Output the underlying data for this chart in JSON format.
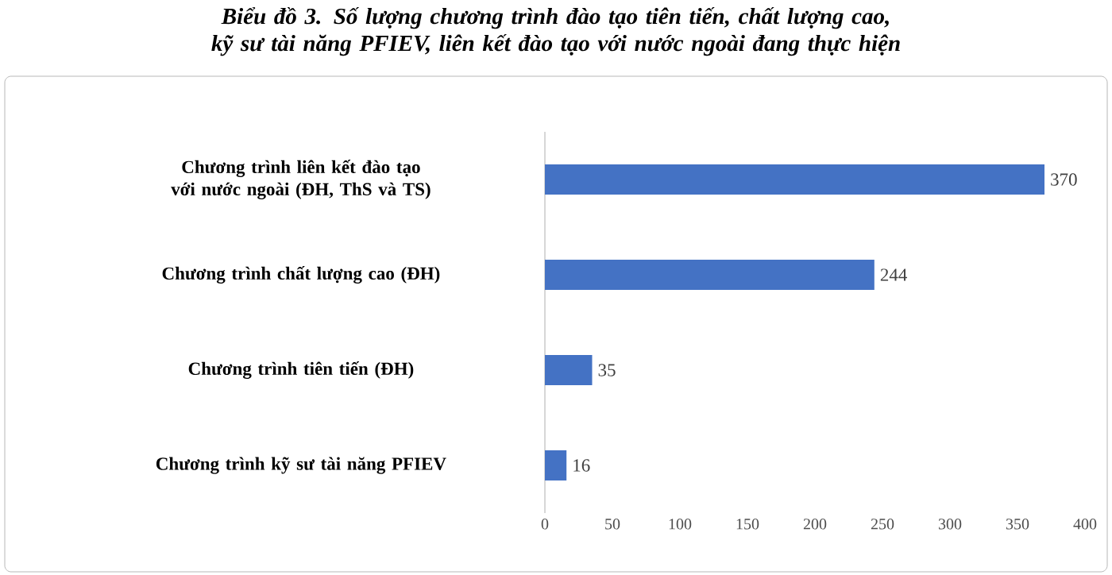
{
  "chart_data": {
    "type": "bar",
    "orientation": "horizontal",
    "title": "Biểu đồ 3. Số lượng chương trình đào tạo tiên tiến, chất lượng cao, kỹ sư tài năng PFIEV, liên kết đào tạo với nước ngoài đang thực hiện",
    "categories": [
      "Chương trình liên kết đào tạo với nước ngoài (ĐH, ThS và TS)",
      "Chương trình chất lượng cao (ĐH)",
      "Chương trình tiên tiến (ĐH)",
      "Chương trình kỹ sư tài năng PFIEV"
    ],
    "values": [
      370,
      244,
      35,
      16
    ],
    "color": "#4472c4",
    "xlim": [
      0,
      400
    ],
    "xticks": [
      0,
      50,
      100,
      150,
      200,
      250,
      300,
      350,
      400
    ],
    "data_labels": true,
    "grid": false
  }
}
